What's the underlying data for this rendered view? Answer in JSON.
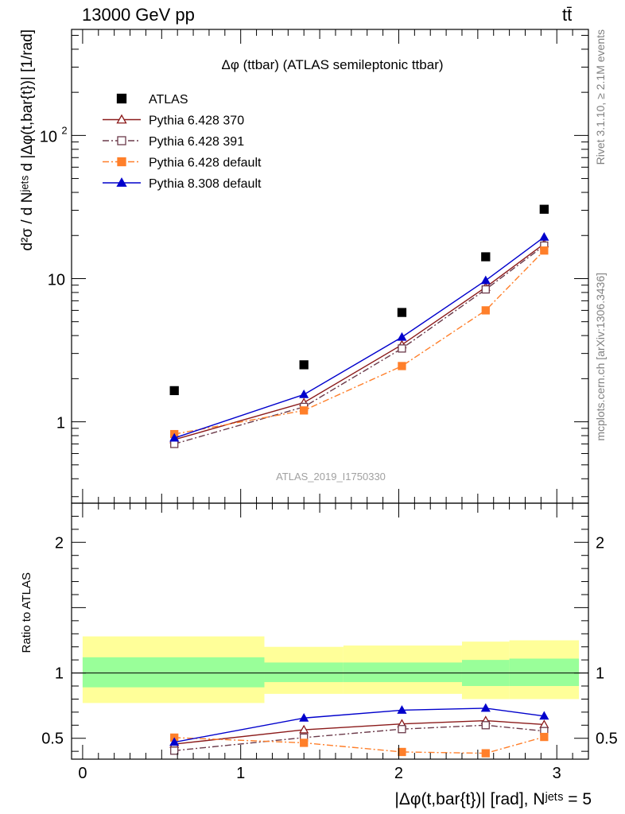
{
  "header": {
    "energy_label": "13000 GeV pp",
    "process_label": "tt̄"
  },
  "side_notes": {
    "rivet": "Rivet 3.1.10, ≥ 2.1M events",
    "mcplots": "mcplots.cern.ch [arXiv:1306.3436]"
  },
  "colors": {
    "atlas": "#000000",
    "py6_370": "#8b1a1a",
    "py6_391": "#6b3a4a",
    "py6_default": "#ff7f2a",
    "py8_default": "#0000cc",
    "band_inner": "#99ff99",
    "band_outer": "#ffff99"
  },
  "chart_data": [
    {
      "type": "line",
      "title": "Δφ (ttbar) (ATLAS semileptonic ttbar)",
      "ylabel": "d²σ / d Nʲᵉᵗˢ d |Δφ(t,bar{t})| [1/rad]",
      "yscale": "log",
      "ylim": [
        0.27,
        550
      ],
      "xlim": [
        -0.07,
        3.2
      ],
      "y_ticks": [
        "1",
        "10",
        "10²"
      ],
      "watermark": "ATLAS_2019_I1750330",
      "legend_position": "top-left",
      "x": [
        0.58,
        1.4,
        2.02,
        2.55,
        2.92
      ],
      "series": [
        {
          "name": "ATLAS",
          "key": "atlas",
          "marker": "square-filled",
          "values": [
            1.65,
            2.5,
            5.8,
            14.2,
            30.5
          ]
        },
        {
          "name": "Pythia 6.428 370",
          "key": "py6_370",
          "marker": "triangle-open",
          "line": "solid",
          "values": [
            0.75,
            1.36,
            3.45,
            8.7,
            17.5
          ]
        },
        {
          "name": "Pythia 6.428 391",
          "key": "py6_391",
          "marker": "square-open",
          "line": "dashdot",
          "values": [
            0.7,
            1.27,
            3.25,
            8.4,
            17.0
          ]
        },
        {
          "name": "Pythia 6.428 default",
          "key": "py6_default",
          "marker": "square-filled",
          "line": "dashdot",
          "values": [
            0.82,
            1.2,
            2.45,
            6.0,
            15.7
          ]
        },
        {
          "name": "Pythia 8.308 default",
          "key": "py8_default",
          "marker": "triangle-filled",
          "line": "solid",
          "values": [
            0.77,
            1.55,
            3.9,
            9.7,
            19.5
          ]
        }
      ]
    },
    {
      "type": "line",
      "ylabel": "Ratio to ATLAS",
      "xlabel": "|Δφ(t,bar{t})| [rad], Nʲᵉᵗˢ = 5",
      "ylim": [
        0.34,
        2.3
      ],
      "xlim": [
        -0.07,
        3.2
      ],
      "x_ticks": [
        "0",
        "1",
        "2",
        "3"
      ],
      "y_ticks": [
        "0.5",
        "1",
        "2"
      ],
      "uncertainty_bands": [
        {
          "x_range": [
            0,
            1.15
          ],
          "inner": [
            0.89,
            1.12
          ],
          "outer": [
            0.77,
            1.28
          ]
        },
        {
          "x_range": [
            1.15,
            1.65
          ],
          "inner": [
            0.93,
            1.08
          ],
          "outer": [
            0.84,
            1.2
          ]
        },
        {
          "x_range": [
            1.65,
            2.4
          ],
          "inner": [
            0.93,
            1.08
          ],
          "outer": [
            0.84,
            1.21
          ]
        },
        {
          "x_range": [
            2.4,
            2.7
          ],
          "inner": [
            0.9,
            1.1
          ],
          "outer": [
            0.8,
            1.24
          ]
        },
        {
          "x_range": [
            2.7,
            3.14
          ],
          "inner": [
            0.9,
            1.11
          ],
          "outer": [
            0.8,
            1.25
          ]
        }
      ],
      "x": [
        0.58,
        1.4,
        2.02,
        2.55,
        2.92
      ],
      "series": [
        {
          "name": "Pythia 6.428 370",
          "key": "py6_370",
          "marker": "triangle-open",
          "line": "solid",
          "values": [
            0.455,
            0.565,
            0.61,
            0.635,
            0.605
          ]
        },
        {
          "name": "Pythia 6.428 391",
          "key": "py6_391",
          "marker": "square-open",
          "line": "dashdot",
          "values": [
            0.405,
            0.505,
            0.57,
            0.6,
            0.555
          ]
        },
        {
          "name": "Pythia 6.428 default",
          "key": "py6_default",
          "marker": "square-filled",
          "line": "dashdot",
          "values": [
            0.505,
            0.465,
            0.395,
            0.385,
            0.51
          ]
        },
        {
          "name": "Pythia 8.308 default",
          "key": "py8_default",
          "marker": "triangle-filled",
          "line": "solid",
          "values": [
            0.47,
            0.655,
            0.715,
            0.73,
            0.67
          ]
        }
      ]
    }
  ]
}
